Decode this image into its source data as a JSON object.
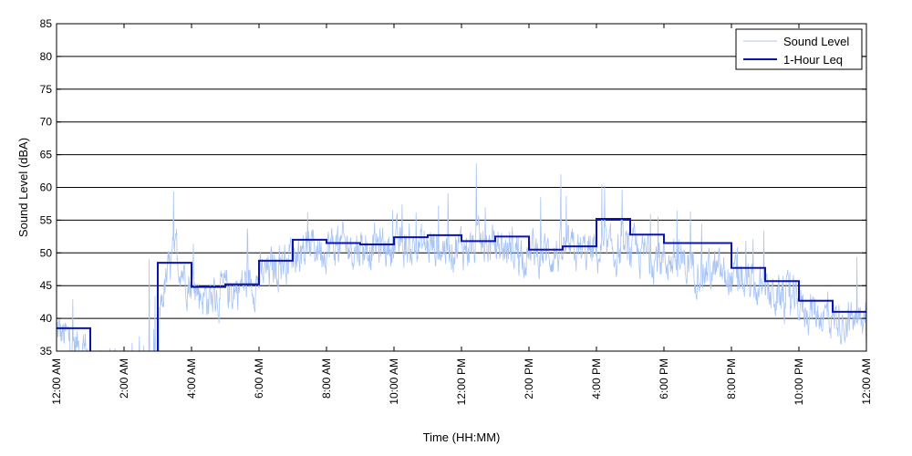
{
  "chart_data": {
    "type": "line",
    "title": "",
    "xlabel": "Time (HH:MM)",
    "ylabel": "Sound Level (dBA)",
    "xlim_hours": [
      0,
      24
    ],
    "ylim": [
      35,
      85
    ],
    "y_ticks": [
      35,
      40,
      45,
      50,
      55,
      60,
      65,
      70,
      75,
      80,
      85
    ],
    "x_tick_hours": [
      0,
      2,
      4,
      6,
      8,
      10,
      12,
      14,
      16,
      18,
      20,
      22,
      24
    ],
    "x_tick_labels": [
      "12:00 AM",
      "2:00 AM",
      "4:00 AM",
      "6:00 AM",
      "8:00 AM",
      "10:00 AM",
      "12:00 PM",
      "2:00 PM",
      "4:00 PM",
      "6:00 PM",
      "8:00 PM",
      "10:00 PM",
      "12:00 AM"
    ],
    "grid": "horizontal",
    "legend_position": "top-right",
    "series": [
      {
        "name": "Sound Level",
        "color": "#a8c4f5",
        "style": "thin-line",
        "envelope": {
          "hours": [
            0,
            0.5,
            1,
            1.5,
            2,
            2.5,
            3,
            3.5,
            4,
            4.5,
            5,
            5.5,
            6,
            6.5,
            7,
            7.5,
            8,
            9,
            10,
            11,
            12,
            13,
            14,
            15,
            16,
            17,
            18,
            19,
            20,
            20.5,
            21,
            21.5,
            22,
            22.5,
            23,
            23.5,
            24
          ],
          "level": [
            38,
            36,
            35,
            35,
            35,
            35,
            41,
            50,
            45,
            43,
            44,
            45,
            46,
            48,
            50,
            51,
            51,
            51,
            51,
            51,
            51,
            51,
            50,
            50,
            50,
            50,
            49,
            48,
            46,
            45,
            44,
            43,
            42,
            41,
            40,
            40,
            39
          ]
        }
      },
      {
        "name": "1-Hour Leq",
        "color": "#0a14b4",
        "style": "step",
        "hours": [
          0,
          1,
          2,
          3,
          4,
          5,
          6,
          7,
          8,
          9,
          10,
          11,
          12,
          13,
          14,
          15,
          16,
          17,
          18,
          19,
          20,
          21,
          22,
          23
        ],
        "values": [
          38.5,
          34,
          34,
          48.5,
          44.8,
          45.2,
          48.8,
          52,
          51.5,
          51.3,
          52.4,
          52.7,
          51.8,
          52.5,
          50.5,
          51,
          55.2,
          52.8,
          51.5,
          51.5,
          47.7,
          45.7,
          42.7,
          41
        ]
      }
    ]
  }
}
